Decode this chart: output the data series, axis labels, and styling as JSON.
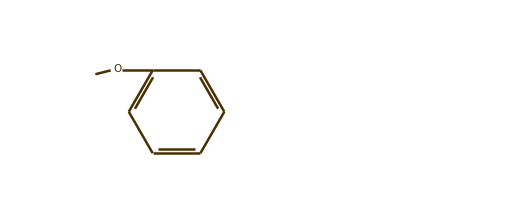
{
  "bg_color": "#ffffff",
  "line_color": "#4a3000",
  "line_width": 1.8,
  "figsize": [
    5.05,
    2.14
  ],
  "dpi": 100
}
